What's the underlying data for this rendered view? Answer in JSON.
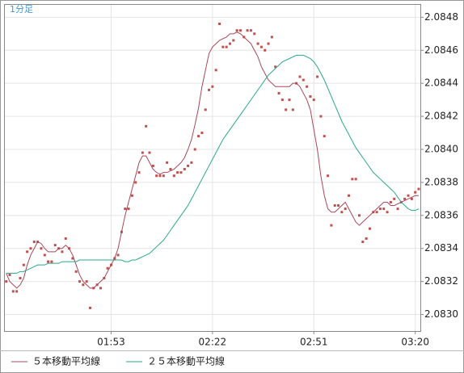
{
  "chart_data": {
    "type": "line",
    "title": "1分足",
    "x": [
      "01:23",
      "01:24",
      "01:25",
      "01:26",
      "01:27",
      "01:28",
      "01:29",
      "01:30",
      "01:31",
      "01:32",
      "01:33",
      "01:34",
      "01:35",
      "01:36",
      "01:37",
      "01:38",
      "01:39",
      "01:40",
      "01:41",
      "01:42",
      "01:43",
      "01:44",
      "01:45",
      "01:46",
      "01:47",
      "01:48",
      "01:49",
      "01:50",
      "01:51",
      "01:52",
      "01:53",
      "01:54",
      "01:55",
      "01:56",
      "01:57",
      "01:58",
      "01:59",
      "02:00",
      "02:01",
      "02:02",
      "02:03",
      "02:04",
      "02:05",
      "02:06",
      "02:07",
      "02:08",
      "02:09",
      "02:10",
      "02:11",
      "02:12",
      "02:13",
      "02:14",
      "02:15",
      "02:16",
      "02:17",
      "02:18",
      "02:19",
      "02:20",
      "02:21",
      "02:22",
      "02:23",
      "02:24",
      "02:25",
      "02:26",
      "02:27",
      "02:28",
      "02:29",
      "02:30",
      "02:31",
      "02:32",
      "02:33",
      "02:34",
      "02:35",
      "02:36",
      "02:37",
      "02:38",
      "02:39",
      "02:40",
      "02:41",
      "02:42",
      "02:43",
      "02:44",
      "02:45",
      "02:46",
      "02:47",
      "02:48",
      "02:49",
      "02:50",
      "02:51",
      "02:52",
      "02:53",
      "02:54",
      "02:55",
      "02:56",
      "02:57",
      "02:58",
      "02:59",
      "03:00",
      "03:01",
      "03:02",
      "03:03",
      "03:04",
      "03:05",
      "03:06",
      "03:07",
      "03:08",
      "03:09",
      "03:10",
      "03:11",
      "03:12",
      "03:13",
      "03:14",
      "03:15",
      "03:16",
      "03:17",
      "03:18",
      "03:19",
      "03:20",
      "03:21"
    ],
    "xlim": [
      "01:23",
      "03:21"
    ],
    "xticks": [
      "01:53",
      "02:22",
      "02:51",
      "03:20"
    ],
    "ylim": [
      2.0829,
      2.08488
    ],
    "yticks": [
      {
        "value": 2.083,
        "label": "2.0830"
      },
      2.0832,
      2.0834,
      2.0836,
      2.0838,
      {
        "value": 2.084,
        "label": "2.0840"
      },
      2.0842,
      2.0844,
      2.0846,
      2.0848
    ],
    "grid": true,
    "series": [
      {
        "type": "scatter",
        "color": "#c0504d",
        "values": [
          2.0832,
          2.08324,
          2.08314,
          2.08314,
          2.08322,
          2.0833,
          2.08338,
          2.0834,
          2.08344,
          2.08344,
          2.0834,
          2.08336,
          2.08332,
          2.08332,
          2.08342,
          2.0834,
          2.08338,
          2.08346,
          2.0834,
          2.08334,
          2.08326,
          2.0832,
          2.08318,
          2.0832,
          2.08304,
          2.08316,
          2.08318,
          2.08316,
          2.08322,
          2.08328,
          2.0833,
          2.08334,
          2.08336,
          2.0835,
          2.08364,
          2.08364,
          2.08372,
          2.0838,
          2.08386,
          2.08398,
          2.08414,
          2.08398,
          2.0839,
          2.08384,
          2.08384,
          2.08384,
          2.08392,
          2.08388,
          2.08384,
          2.08386,
          2.08386,
          2.08388,
          2.0839,
          2.08392,
          2.084,
          2.08408,
          2.0841,
          2.08424,
          2.08436,
          2.08438,
          2.08448,
          2.08476,
          2.08462,
          2.08462,
          2.08464,
          2.08466,
          2.08472,
          2.08472,
          2.08468,
          2.08472,
          2.08472,
          2.0847,
          2.08464,
          2.08462,
          2.0846,
          2.08464,
          2.08468,
          2.0845,
          2.08434,
          2.0843,
          2.08424,
          2.0843,
          2.08424,
          2.0844,
          2.08444,
          2.08442,
          2.08438,
          2.08432,
          2.0843,
          2.08444,
          2.0842,
          2.08408,
          2.08384,
          2.08354,
          2.08366,
          2.08366,
          2.08362,
          2.08364,
          2.08372,
          2.08382,
          2.08382,
          2.0836,
          2.08344,
          2.08346,
          2.08352,
          2.08362,
          2.08362,
          2.08364,
          2.08364,
          2.08362,
          2.08368,
          2.0837,
          2.08364,
          2.08368,
          2.0837,
          2.08372,
          2.0837,
          2.08374,
          2.08376
        ]
      },
      {
        "type": "line",
        "name": "５本移動平均線",
        "color": "#a8475a",
        "values": [
          2.08325,
          2.0832,
          2.08318,
          2.08316,
          2.08318,
          2.08322,
          2.0833,
          2.08336,
          2.0834,
          2.08344,
          2.08343,
          2.0834,
          2.08338,
          2.08338,
          2.08338,
          2.0834,
          2.0834,
          2.08342,
          2.0834,
          2.08336,
          2.0833,
          2.08324,
          2.0832,
          2.08318,
          2.08316,
          2.08316,
          2.08318,
          2.0832,
          2.08322,
          2.08326,
          2.0833,
          2.08334,
          2.0834,
          2.0835,
          2.0836,
          2.08368,
          2.08376,
          2.08384,
          2.08392,
          2.08396,
          2.08396,
          2.08392,
          2.08388,
          2.08386,
          2.08385,
          2.08386,
          2.08386,
          2.08387,
          2.08388,
          2.0839,
          2.08392,
          2.08395,
          2.084,
          2.08406,
          2.08415,
          2.08425,
          2.08438,
          2.08448,
          2.08458,
          2.08462,
          2.08464,
          2.08466,
          2.08467,
          2.08468,
          2.0847,
          2.0847,
          2.08471,
          2.0847,
          2.08468,
          2.08466,
          2.08464,
          2.0846,
          2.08456,
          2.0845,
          2.08446,
          2.08442,
          2.0844,
          2.08438,
          2.08438,
          2.08438,
          2.08438,
          2.08438,
          2.0844,
          2.0844,
          2.08438,
          2.08434,
          2.0843,
          2.08424,
          2.08412,
          2.084,
          2.08384,
          2.08372,
          2.08364,
          2.08362,
          2.08362,
          2.08364,
          2.08366,
          2.08368,
          2.08364,
          2.0836,
          2.08356,
          2.08354,
          2.08356,
          2.08358,
          2.0836,
          2.08362,
          2.08364,
          2.08366,
          2.08368,
          2.08368,
          2.08366,
          2.08366,
          2.08367,
          2.08368,
          2.08369,
          2.0837,
          2.08371,
          2.08372,
          2.08372
        ]
      },
      {
        "type": "line",
        "name": "２５本移動平均線",
        "color": "#2aa88a",
        "values": [
          2.08325,
          2.08325,
          2.08325,
          2.08325,
          2.08326,
          2.08326,
          2.08327,
          2.08328,
          2.08329,
          2.0833,
          2.0833,
          2.0833,
          2.08331,
          2.08331,
          2.08331,
          2.08331,
          2.08332,
          2.08332,
          2.08332,
          2.08332,
          2.08332,
          2.08333,
          2.08333,
          2.08333,
          2.08333,
          2.08333,
          2.08333,
          2.08333,
          2.08333,
          2.08333,
          2.08333,
          2.08333,
          2.08333,
          2.08333,
          2.08332,
          2.08332,
          2.08333,
          2.08333,
          2.08334,
          2.08335,
          2.08336,
          2.08337,
          2.08339,
          2.08341,
          2.08343,
          2.08345,
          2.08348,
          2.08351,
          2.08354,
          2.08357,
          2.0836,
          2.08363,
          2.08366,
          2.0837,
          2.08374,
          2.08378,
          2.08382,
          2.08386,
          2.0839,
          2.08394,
          2.08398,
          2.08402,
          2.08406,
          2.08409,
          2.08412,
          2.08415,
          2.08418,
          2.08421,
          2.08424,
          2.08427,
          2.0843,
          2.08433,
          2.08436,
          2.08439,
          2.08442,
          2.08445,
          2.08447,
          2.08449,
          2.08451,
          2.08453,
          2.08454,
          2.08455,
          2.08456,
          2.08457,
          2.08457,
          2.08457,
          2.08456,
          2.08455,
          2.08453,
          2.0845,
          2.08446,
          2.08442,
          2.08437,
          2.08432,
          2.08427,
          2.08422,
          2.08417,
          2.08413,
          2.08409,
          2.08405,
          2.08401,
          2.08398,
          2.08395,
          2.08392,
          2.08389,
          2.08386,
          2.08384,
          2.08382,
          2.0838,
          2.08378,
          2.08376,
          2.08374,
          2.08371,
          2.08368,
          2.08366,
          2.08364,
          2.08363,
          2.08363,
          2.08364
        ]
      }
    ]
  }
}
